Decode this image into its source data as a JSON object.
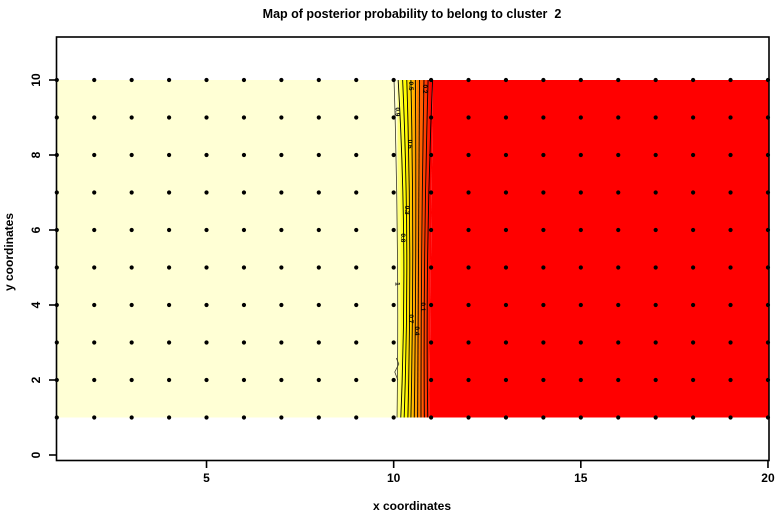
{
  "chart_data": {
    "type": "filled-contour",
    "title": "Map of posterior probability to belong to cluster  2",
    "xlabel": "x coordinates",
    "ylabel": "y coordinates",
    "x_ticks": [
      5,
      10,
      15,
      20
    ],
    "y_ticks": [
      0,
      2,
      4,
      6,
      8,
      10
    ],
    "xlim": [
      0.97,
      20.05
    ],
    "ylim": [
      -0.15,
      11.3
    ],
    "background_color": "#FFFFFF",
    "grid_points": {
      "x_start": 1,
      "x_end": 20,
      "y_start": 1,
      "y_end": 10,
      "step": 1,
      "color": "#000000",
      "radius": 2.1,
      "description": "black dot at every integer (x,y) observation location"
    },
    "heat_region": {
      "x_range": [
        1,
        20
      ],
      "y_range": [
        1,
        10
      ]
    },
    "zones": {
      "high_probability": {
        "fill": "#FFFFD5",
        "x_range": [
          1,
          10
        ],
        "probability": 1
      },
      "transition": {
        "x_range": [
          10,
          11.05
        ],
        "description": "probability falls from 1 to 0 between x=10 and x=11"
      },
      "low_probability": {
        "fill": "#FF0000",
        "x_range": [
          11.05,
          20
        ],
        "probability": 0
      }
    },
    "gradient_colors": [
      "#FFFFD5",
      "#FFFF80",
      "#FFFF2A",
      "#FFFF00",
      "#FFDF00",
      "#FFBF00",
      "#FF9F00",
      "#FF8000",
      "#FF6000",
      "#FF4000",
      "#FF2000",
      "#FF0000"
    ],
    "contours": [
      {
        "level": "1",
        "x_top": 10.01,
        "x_mid": 10.1,
        "x_bottom": 10.09
      },
      {
        "level": "0.9",
        "x_top": 10.12,
        "x_mid": 10.27,
        "x_bottom": 10.19
      },
      {
        "level": "0.8",
        "x_top": 10.24,
        "x_mid": 10.35,
        "x_bottom": 10.28
      },
      {
        "level": "0.7",
        "x_top": 10.35,
        "x_mid": 10.43,
        "x_bottom": 10.38
      },
      {
        "level": "0.6",
        "x_top": 10.46,
        "x_mid": 10.51,
        "x_bottom": 10.46
      },
      {
        "level": "0.5",
        "x_top": 10.58,
        "x_mid": 10.59,
        "x_bottom": 10.55
      },
      {
        "level": "0.4",
        "x_top": 10.69,
        "x_mid": 10.67,
        "x_bottom": 10.64
      },
      {
        "level": "0.3",
        "x_top": 10.81,
        "x_mid": 10.75,
        "x_bottom": 10.73
      },
      {
        "level": "0.2",
        "x_top": 10.92,
        "x_mid": 10.83,
        "x_bottom": 10.82
      },
      {
        "level": "0.1",
        "x_top": 11.04,
        "x_mid": 10.91,
        "x_bottom": 10.91
      }
    ],
    "contour_labels": [
      {
        "text": "0.5",
        "x": 10.46,
        "y": 9.84
      },
      {
        "text": "0.2",
        "x": 10.84,
        "y": 9.76
      },
      {
        "text": "0.9",
        "x": 10.1,
        "y": 9.15
      },
      {
        "text": "0.6",
        "x": 10.44,
        "y": 8.29
      },
      {
        "text": "0.3",
        "x": 10.36,
        "y": 6.53
      },
      {
        "text": "0.8",
        "x": 10.25,
        "y": 5.79
      },
      {
        "text": "1",
        "x": 10.1,
        "y": 4.56
      },
      {
        "text": "0.1",
        "x": 10.78,
        "y": 3.95
      },
      {
        "text": "0.7",
        "x": 10.46,
        "y": 3.63
      },
      {
        "text": "0.4",
        "x": 10.62,
        "y": 3.31
      }
    ]
  }
}
